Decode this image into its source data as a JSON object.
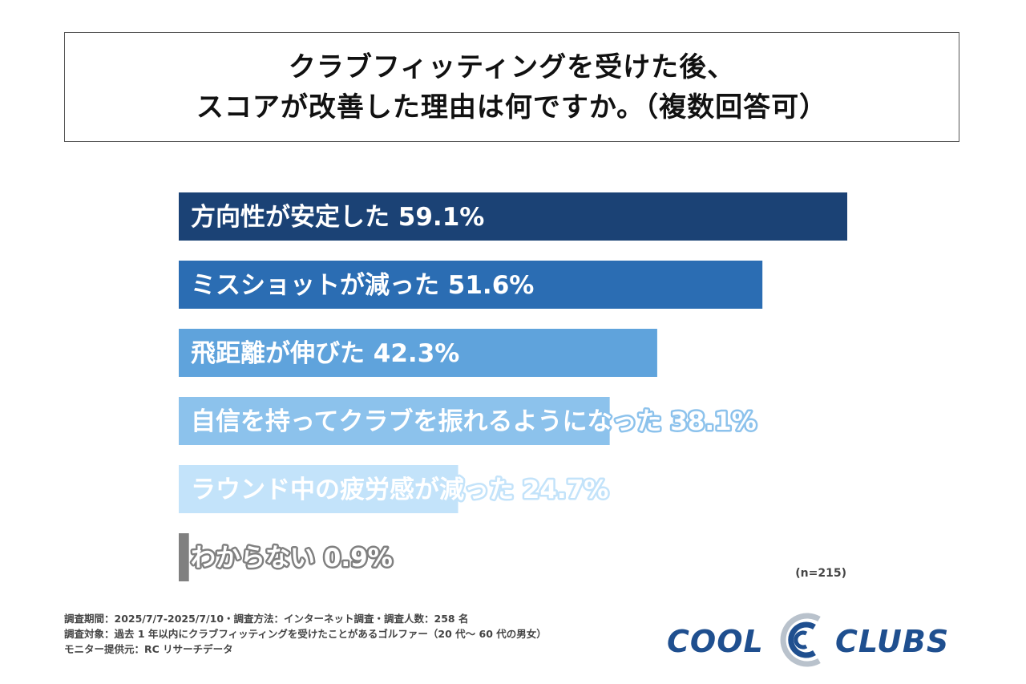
{
  "title": {
    "line1": "クラブフィッティングを受けた後、",
    "line2": "スコアが改善した理由は何ですか。（複数回答可）"
  },
  "chart_data": {
    "type": "bar",
    "orientation": "horizontal",
    "title": "クラブフィッティングを受けた後、スコアが改善した理由は何ですか。（複数回答可）",
    "categories": [
      "方向性が安定した",
      "ミスショットが減った",
      "飛距離が伸びた",
      "自信を持ってクラブを振れるようになった",
      "ラウンド中の疲労感が減った",
      "わからない"
    ],
    "values": [
      59.1,
      51.6,
      42.3,
      38.1,
      24.7,
      0.9
    ],
    "value_labels": [
      "59.1%",
      "51.6%",
      "42.3%",
      "38.1%",
      "24.7%",
      "0.9%"
    ],
    "unit": "%",
    "xlim": [
      0,
      59.1
    ],
    "colors": [
      "#1b4275",
      "#2b6db3",
      "#5fa3dc",
      "#8cc2ec",
      "#c3e3fa",
      "#808080"
    ],
    "sample": "(n=215)"
  },
  "notes": {
    "line1": "調査期間：2025/7/7-2025/7/10・調査方法：インターネット調査・調査人数：258 名",
    "line2": "調査対象：過去 1 年以内にクラブフィッティングを受けたことがあるゴルファー（20 代〜 60 代の男女）",
    "line3": "モニター提供元：RC リサーチデータ"
  },
  "logo": {
    "left": "COOL",
    "right": "CLUBS",
    "mark_icon": "double-c-logo-icon"
  }
}
